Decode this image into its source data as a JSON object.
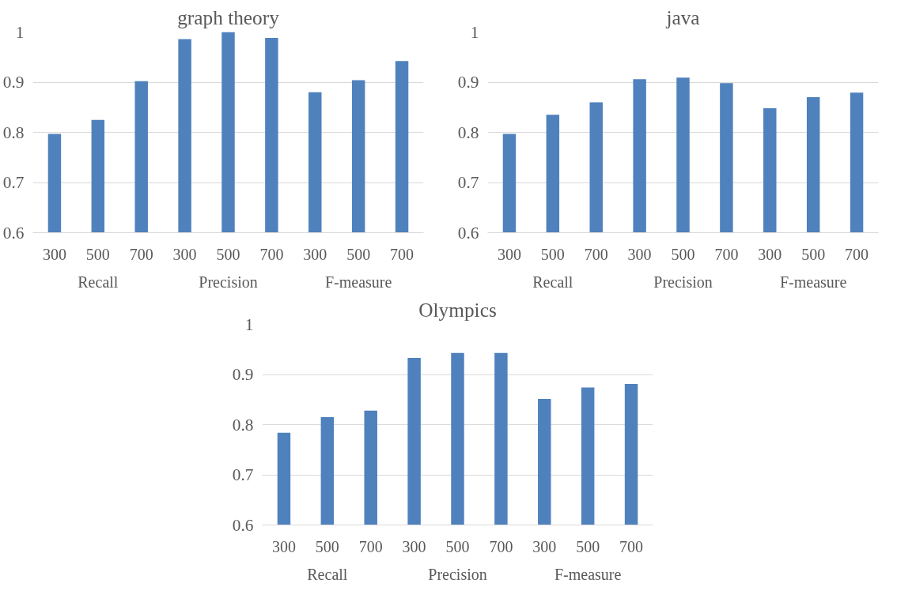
{
  "chart_data": [
    {
      "type": "bar",
      "title": "graph theory",
      "categories": [
        "300",
        "500",
        "700",
        "300",
        "500",
        "700",
        "300",
        "500",
        "700"
      ],
      "annotations": [
        "Recall",
        "Precision",
        "F-measure"
      ],
      "values": [
        0.797,
        0.825,
        0.902,
        0.986,
        1.0,
        0.988,
        0.88,
        0.904,
        0.942
      ],
      "color": "#4f81bd",
      "ylim": [
        0.6,
        1
      ],
      "yticks": [
        0.6,
        0.7,
        0.8,
        0.9,
        1
      ],
      "grid": "y"
    },
    {
      "type": "bar",
      "title": "java",
      "categories": [
        "300",
        "500",
        "700",
        "300",
        "500",
        "700",
        "300",
        "500",
        "700"
      ],
      "annotations": [
        "Recall",
        "Precision",
        "F-measure"
      ],
      "values": [
        0.797,
        0.835,
        0.86,
        0.906,
        0.909,
        0.898,
        0.848,
        0.87,
        0.879
      ],
      "color": "#4f81bd",
      "ylim": [
        0.6,
        1
      ],
      "yticks": [
        0.6,
        0.7,
        0.8,
        0.9,
        1
      ],
      "grid": "y"
    },
    {
      "type": "bar",
      "title": "Olympics",
      "categories": [
        "300",
        "500",
        "700",
        "300",
        "500",
        "700",
        "300",
        "500",
        "700"
      ],
      "annotations": [
        "Recall",
        "Precision",
        "F-measure"
      ],
      "values": [
        0.784,
        0.815,
        0.828,
        0.933,
        0.943,
        0.943,
        0.851,
        0.874,
        0.881
      ],
      "color": "#4f81bd",
      "ylim": [
        0.6,
        1
      ],
      "yticks": [
        0.6,
        0.7,
        0.8,
        0.9,
        1
      ],
      "grid": "y"
    }
  ]
}
